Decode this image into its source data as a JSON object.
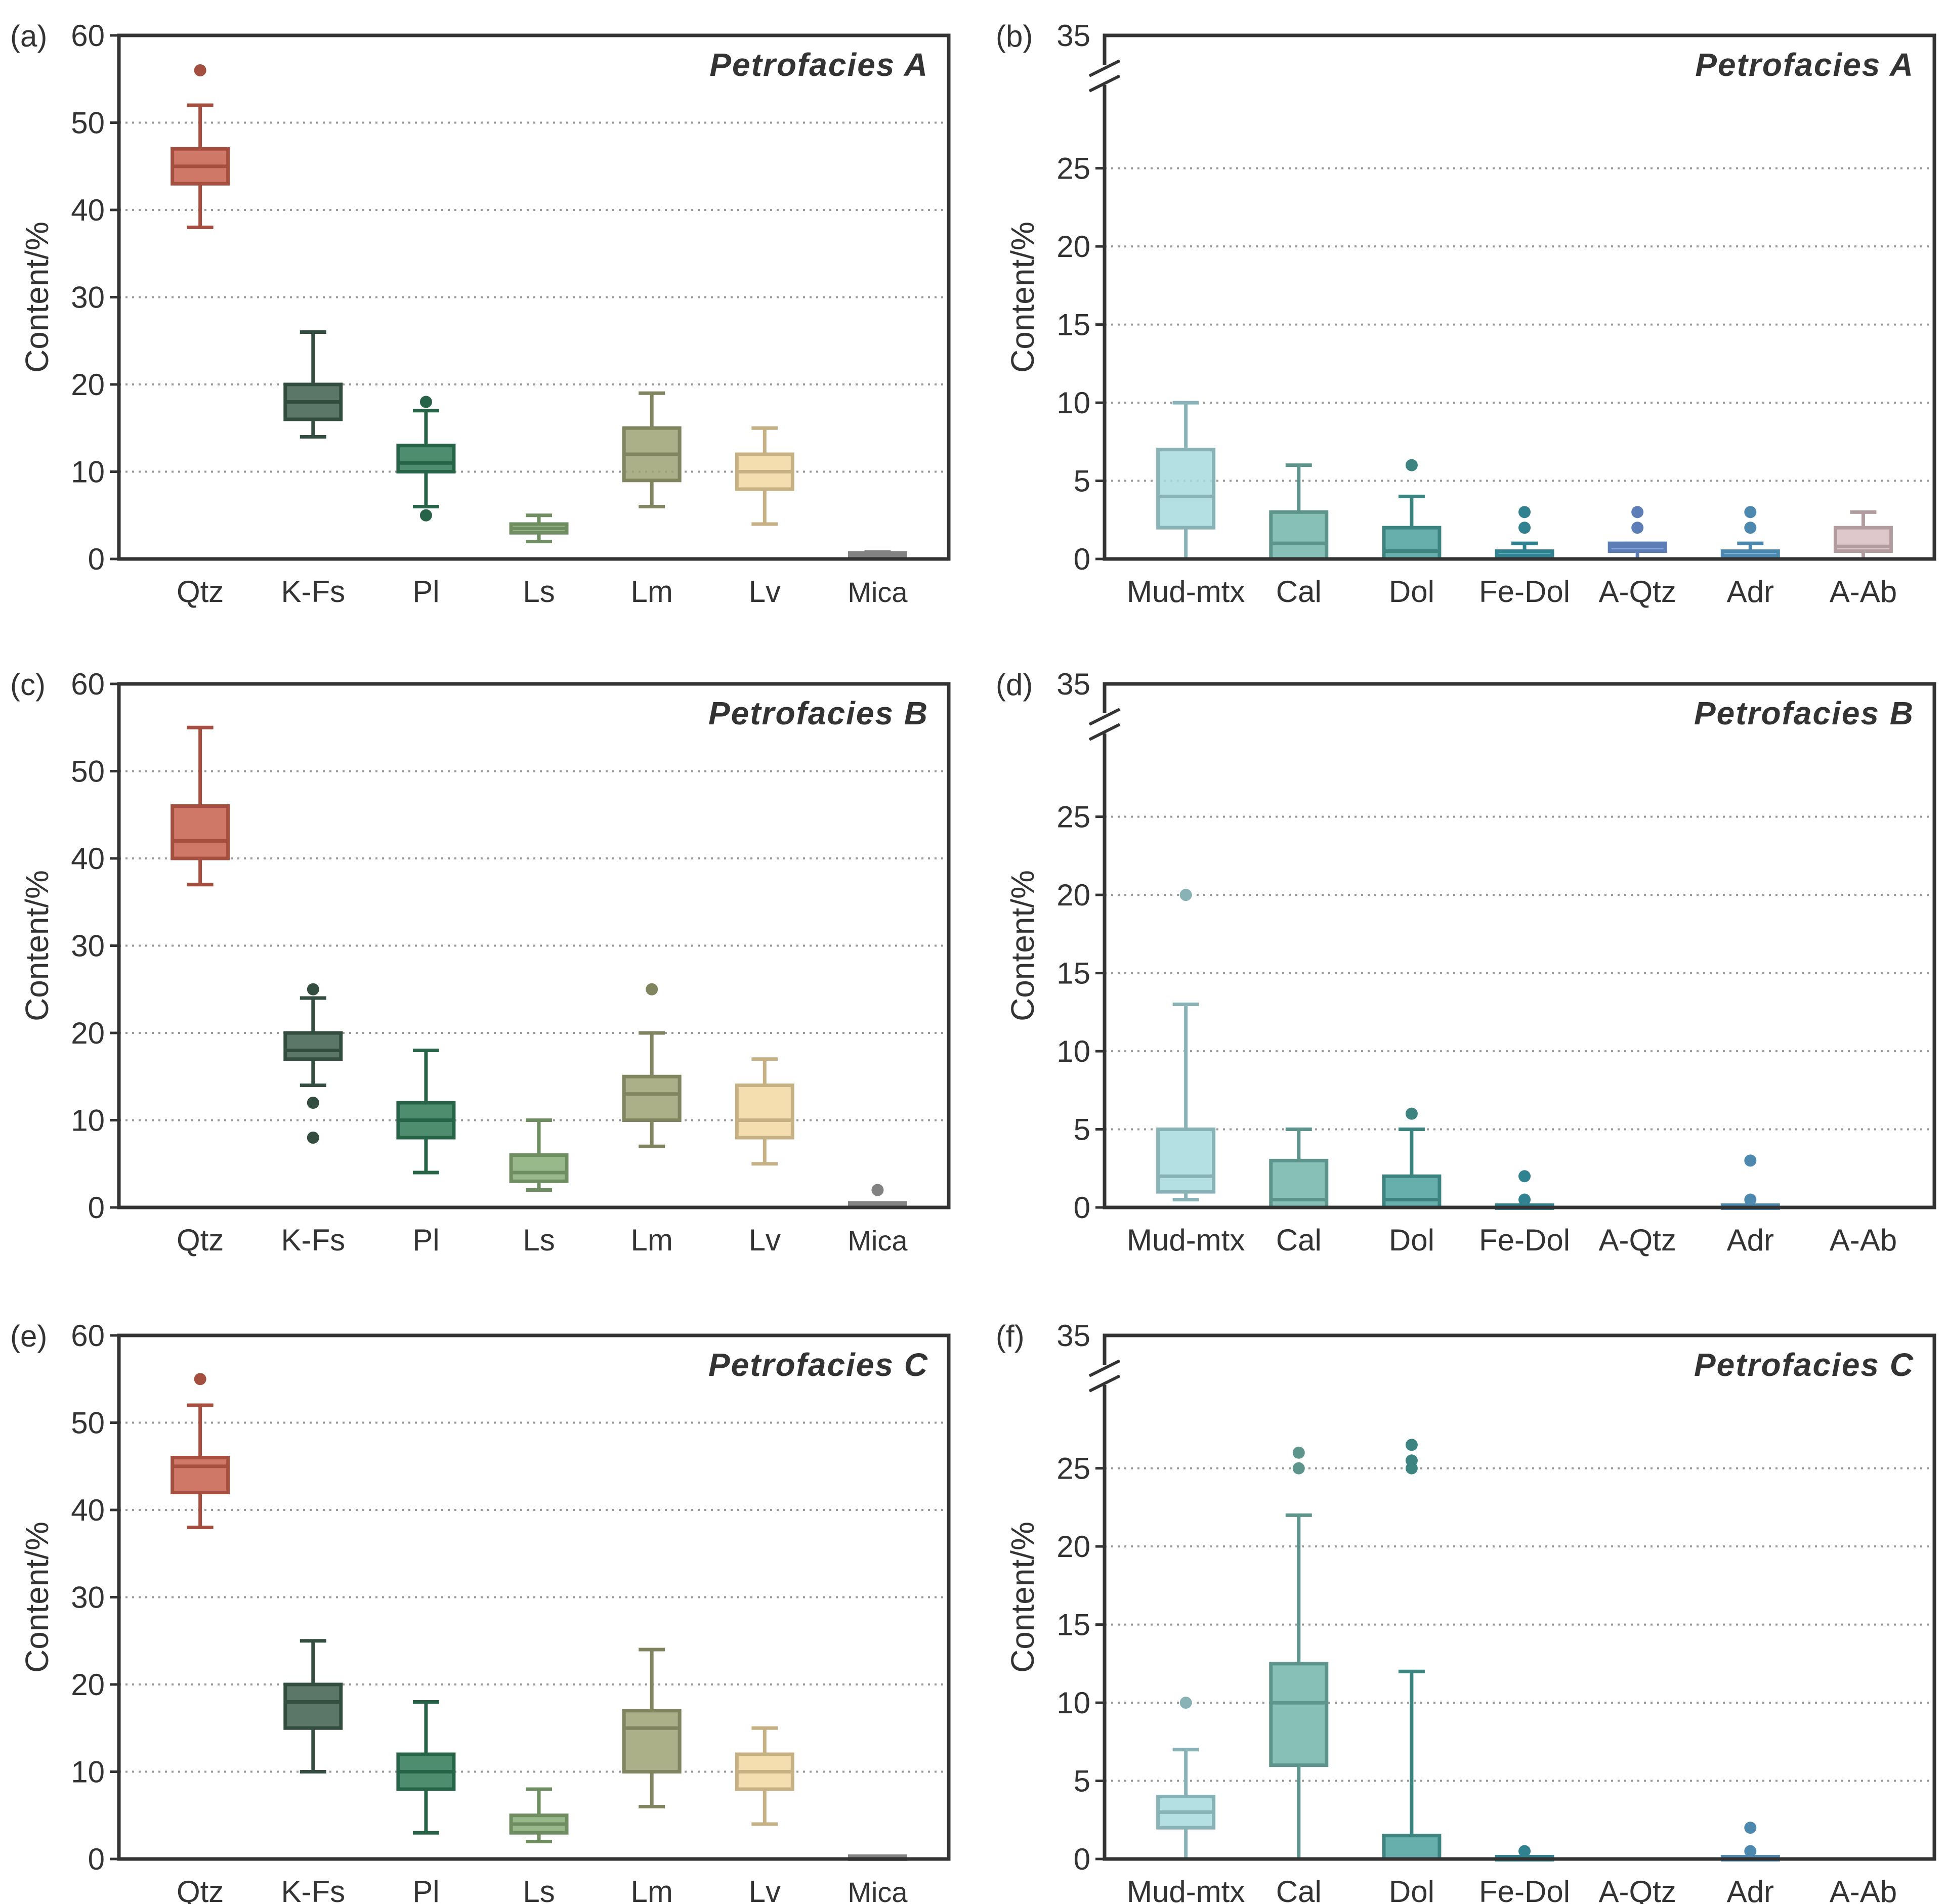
{
  "chart_data": [
    {
      "type": "box",
      "panel_label": "(a)",
      "title": "Petrofacies A",
      "ylabel": "Content/%",
      "ylim": [
        0,
        60
      ],
      "yticks": [
        "0",
        "10",
        "20",
        "30",
        "40",
        "50",
        "60"
      ],
      "grid": "horizontal dotted",
      "axis_break": false,
      "categories": [
        "Qtz",
        "K-Fs",
        "Pl",
        "Ls",
        "Lm",
        "Lv",
        "Mica"
      ],
      "colors": [
        "#c8604e",
        "#3e5f4e",
        "#2f7a56",
        "#86ad76",
        "#9da274",
        "#f2d8a2",
        "#9e9e9e"
      ],
      "boxes": [
        {
          "min": 38,
          "q1": 43,
          "median": 45,
          "q3": 47,
          "max": 52,
          "outliers": [
            56
          ]
        },
        {
          "min": 14,
          "q1": 16,
          "median": 18,
          "q3": 20,
          "max": 26,
          "outliers": []
        },
        {
          "min": 6,
          "q1": 10,
          "median": 11,
          "q3": 13,
          "max": 17,
          "outliers": [
            5,
            18
          ]
        },
        {
          "min": 2,
          "q1": 3,
          "median": 3.5,
          "q3": 4,
          "max": 5,
          "outliers": []
        },
        {
          "min": 6,
          "q1": 9,
          "median": 12,
          "q3": 15,
          "max": 19,
          "outliers": []
        },
        {
          "min": 4,
          "q1": 8,
          "median": 10,
          "q3": 12,
          "max": 15,
          "outliers": []
        },
        {
          "min": 0.3,
          "q1": 0.3,
          "median": 0.5,
          "q3": 0.7,
          "max": 0.8,
          "outliers": []
        }
      ]
    },
    {
      "type": "box",
      "panel_label": "(b)",
      "title": "Petrofacies  A",
      "ylabel": "Content/%",
      "ylim": [
        0,
        28
      ],
      "axis_break": true,
      "yticks": [
        "0",
        "5",
        "10",
        "15",
        "20",
        "25",
        "35"
      ],
      "grid": "horizontal dotted",
      "categories": [
        "Mud-mtx",
        "Cal",
        "Dol",
        "Fe-Dol",
        "A-Qtz",
        "Adr",
        "A-Ab"
      ],
      "colors": [
        "#a7d9de",
        "#72b5aa",
        "#4ba19d",
        "#3a9eb0",
        "#7099dd",
        "#5ea7d6",
        "#d8bec2"
      ],
      "boxes": [
        {
          "min": 0,
          "q1": 2,
          "median": 4,
          "q3": 7,
          "max": 10,
          "outliers": []
        },
        {
          "min": 0,
          "q1": 0,
          "median": 1,
          "q3": 3,
          "max": 6,
          "outliers": []
        },
        {
          "min": 0,
          "q1": 0,
          "median": 0.5,
          "q3": 2,
          "max": 4,
          "outliers": [
            6
          ]
        },
        {
          "min": 0,
          "q1": 0,
          "median": 0.2,
          "q3": 0.5,
          "max": 1,
          "outliers": [
            2,
            3
          ]
        },
        {
          "min": 0,
          "q1": 0.5,
          "median": 0.8,
          "q3": 1,
          "max": 1,
          "outliers": [
            2,
            3
          ]
        },
        {
          "min": 0,
          "q1": 0,
          "median": 0.2,
          "q3": 0.5,
          "max": 1,
          "outliers": [
            2,
            3
          ]
        },
        {
          "min": 0,
          "q1": 0.5,
          "median": 0.8,
          "q3": 2,
          "max": 3,
          "outliers": []
        }
      ]
    },
    {
      "type": "box",
      "panel_label": "(c)",
      "title": "Petrofacies  B",
      "ylabel": "Content/%",
      "ylim": [
        0,
        60
      ],
      "yticks": [
        "0",
        "10",
        "20",
        "30",
        "40",
        "50",
        "60"
      ],
      "grid": "horizontal dotted",
      "axis_break": false,
      "categories": [
        "Qtz",
        "K-Fs",
        "Pl",
        "Ls",
        "Lm",
        "Lv",
        "Mica"
      ],
      "colors": [
        "#c8604e",
        "#3e5f4e",
        "#2f7a56",
        "#86ad76",
        "#9da274",
        "#f2d8a2",
        "#9e9e9e"
      ],
      "boxes": [
        {
          "min": 37,
          "q1": 40,
          "median": 42,
          "q3": 46,
          "max": 55,
          "outliers": []
        },
        {
          "min": 14,
          "q1": 17,
          "median": 18,
          "q3": 20,
          "max": 24,
          "outliers": [
            8,
            12,
            25
          ]
        },
        {
          "min": 4,
          "q1": 8,
          "median": 10,
          "q3": 12,
          "max": 18,
          "outliers": []
        },
        {
          "min": 2,
          "q1": 3,
          "median": 4,
          "q3": 6,
          "max": 10,
          "outliers": []
        },
        {
          "min": 7,
          "q1": 10,
          "median": 13,
          "q3": 15,
          "max": 20,
          "outliers": [
            25
          ]
        },
        {
          "min": 5,
          "q1": 8,
          "median": 10,
          "q3": 14,
          "max": 17,
          "outliers": []
        },
        {
          "min": 0,
          "q1": 0.2,
          "median": 0.3,
          "q3": 0.5,
          "max": 0.5,
          "outliers": [
            2
          ]
        }
      ]
    },
    {
      "type": "box",
      "panel_label": "(d)",
      "title": "Petrofacies B",
      "ylabel": "Content/%",
      "ylim": [
        0,
        28
      ],
      "axis_break": true,
      "yticks": [
        "0",
        "5",
        "10",
        "15",
        "20",
        "25",
        "35"
      ],
      "grid": "horizontal dotted",
      "categories": [
        "Mud-mtx",
        "Cal",
        "Dol",
        "Fe-Dol",
        "A-Qtz",
        "Adr",
        "A-Ab"
      ],
      "colors": [
        "#a7d9de",
        "#72b5aa",
        "#4ba19d",
        "#3a9eb0",
        "#7099dd",
        "#5ea7d6",
        "#d8bec2"
      ],
      "boxes": [
        {
          "min": 0.5,
          "q1": 1,
          "median": 2,
          "q3": 5,
          "max": 13,
          "outliers": [
            20
          ]
        },
        {
          "min": 0,
          "q1": 0,
          "median": 0.5,
          "q3": 3,
          "max": 5,
          "outliers": []
        },
        {
          "min": 0,
          "q1": 0,
          "median": 0.5,
          "q3": 2,
          "max": 5,
          "outliers": [
            6
          ]
        },
        {
          "min": 0,
          "q1": 0,
          "median": 0,
          "q3": 0.1,
          "max": 0.1,
          "outliers": [
            0.5,
            2
          ]
        },
        null,
        {
          "min": 0,
          "q1": 0,
          "median": 0,
          "q3": 0.1,
          "max": 0.1,
          "outliers": [
            0.5,
            3
          ]
        },
        null
      ]
    },
    {
      "type": "box",
      "panel_label": "(e)",
      "title": "Petrofacies  C",
      "ylabel": "Content/%",
      "ylim": [
        0,
        60
      ],
      "yticks": [
        "0",
        "10",
        "20",
        "30",
        "40",
        "50",
        "60"
      ],
      "grid": "horizontal dotted",
      "axis_break": false,
      "categories": [
        "Qtz",
        "K-Fs",
        "Pl",
        "Ls",
        "Lm",
        "Lv",
        "Mica"
      ],
      "colors": [
        "#c8604e",
        "#3e5f4e",
        "#2f7a56",
        "#86ad76",
        "#9da274",
        "#f2d8a2",
        "#9e9e9e"
      ],
      "boxes": [
        {
          "min": 38,
          "q1": 42,
          "median": 45,
          "q3": 46,
          "max": 52,
          "outliers": [
            55
          ]
        },
        {
          "min": 10,
          "q1": 15,
          "median": 18,
          "q3": 20,
          "max": 25,
          "outliers": []
        },
        {
          "min": 3,
          "q1": 8,
          "median": 10,
          "q3": 12,
          "max": 18,
          "outliers": []
        },
        {
          "min": 2,
          "q1": 3,
          "median": 4,
          "q3": 5,
          "max": 8,
          "outliers": []
        },
        {
          "min": 6,
          "q1": 10,
          "median": 15,
          "q3": 17,
          "max": 24,
          "outliers": []
        },
        {
          "min": 4,
          "q1": 8,
          "median": 10,
          "q3": 12,
          "max": 15,
          "outliers": []
        },
        {
          "min": 0,
          "q1": 0,
          "median": 0.2,
          "q3": 0.3,
          "max": 0.3,
          "outliers": []
        }
      ]
    },
    {
      "type": "box",
      "panel_label": "(f)",
      "title": "Petrofacies  C",
      "ylabel": "Content/%",
      "ylim": [
        0,
        28
      ],
      "axis_break": true,
      "yticks": [
        "0",
        "5",
        "10",
        "15",
        "20",
        "25",
        "35"
      ],
      "grid": "horizontal dotted",
      "categories": [
        "Mud-mtx",
        "Cal",
        "Dol",
        "Fe-Dol",
        "A-Qtz",
        "Adr",
        "A-Ab"
      ],
      "colors": [
        "#a7d9de",
        "#72b5aa",
        "#4ba19d",
        "#3a9eb0",
        "#7099dd",
        "#5ea7d6",
        "#d8bec2"
      ],
      "boxes": [
        {
          "min": 0,
          "q1": 2,
          "median": 3,
          "q3": 4,
          "max": 7,
          "outliers": [
            10
          ]
        },
        {
          "min": 0,
          "q1": 6,
          "median": 10,
          "q3": 12.5,
          "max": 22,
          "outliers": [
            25,
            26
          ]
        },
        {
          "min": 0,
          "q1": 0,
          "median": 0,
          "q3": 1.5,
          "max": 12,
          "outliers": [
            25,
            25.5,
            26.5
          ]
        },
        {
          "min": 0,
          "q1": 0,
          "median": 0,
          "q3": 0.1,
          "max": 0.1,
          "outliers": [
            0.5
          ]
        },
        null,
        {
          "min": 0,
          "q1": 0,
          "median": 0,
          "q3": 0.1,
          "max": 0.1,
          "outliers": [
            0.5,
            2
          ]
        },
        null
      ]
    }
  ]
}
